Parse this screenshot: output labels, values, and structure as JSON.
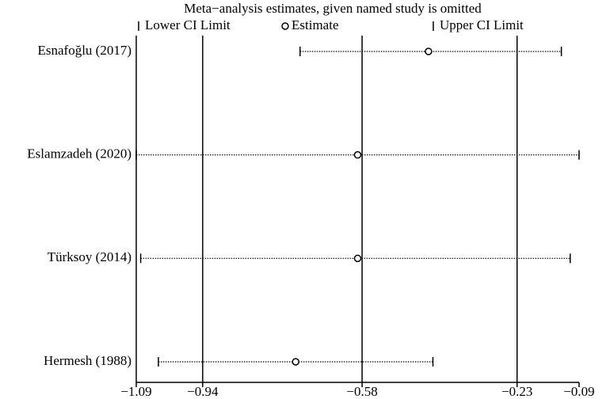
{
  "chart_data": {
    "type": "influence",
    "title": "Meta−analysis estimates, given named study is omitted",
    "categories": [
      "Esnafoğlu (2017)",
      "Eslamzadeh (2020)",
      "Türksoy (2014)",
      "Hermesh (1988)"
    ],
    "series": [
      {
        "name": "Lower CI Limit",
        "values": [
          -0.72,
          -1.09,
          -1.08,
          -1.04
        ]
      },
      {
        "name": "Estimate",
        "values": [
          -0.43,
          -0.59,
          -0.59,
          -0.73
        ]
      },
      {
        "name": "Upper CI Limit",
        "values": [
          -0.13,
          -0.09,
          -0.11,
          -0.42
        ]
      }
    ],
    "reference_lines": [
      -0.94,
      -0.58,
      -0.23
    ],
    "xlim": [
      -1.09,
      -0.09
    ],
    "xticks": [
      {
        "value": -1.09,
        "label": "−1.09"
      },
      {
        "value": -0.94,
        "label": "−0.94"
      },
      {
        "value": -0.58,
        "label": "−0.58"
      },
      {
        "value": -0.23,
        "label": "−0.23"
      },
      {
        "value": -0.09,
        "label": "−0.09"
      }
    ],
    "color": "#000000"
  }
}
